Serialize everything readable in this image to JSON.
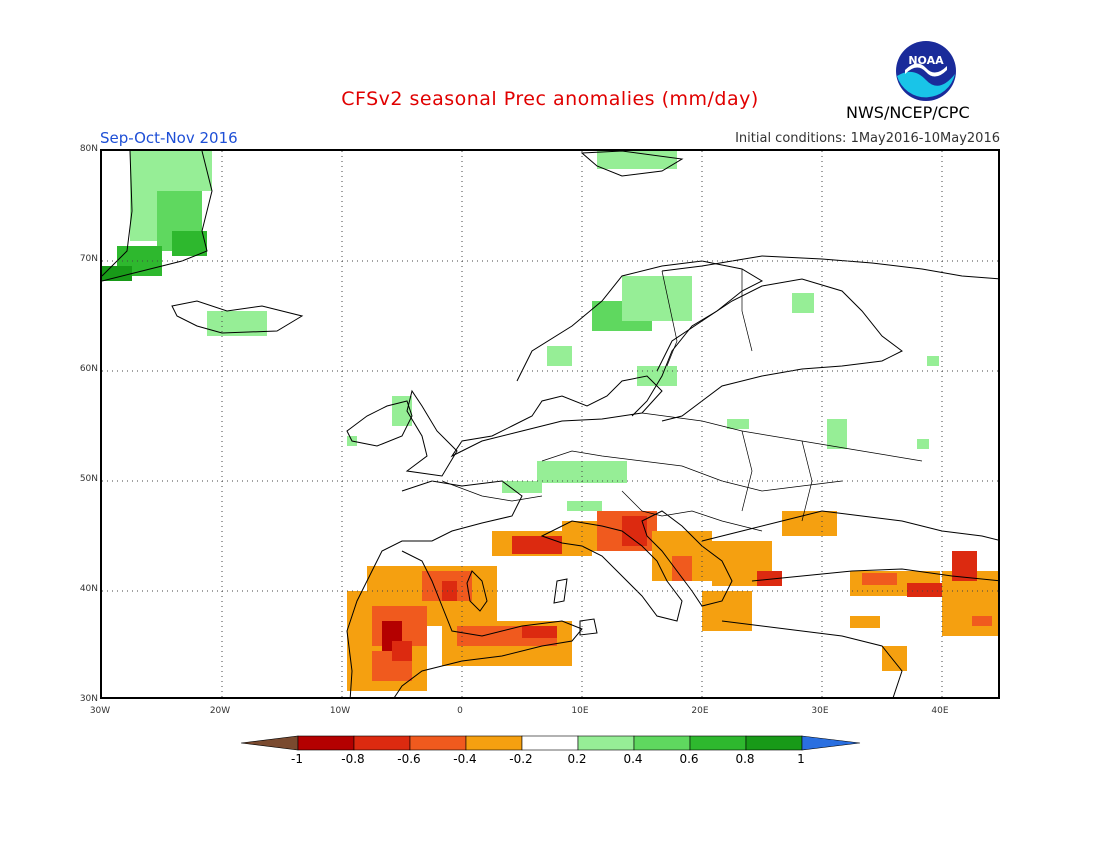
{
  "header": {
    "title": "CFSv2 seasonal Prec anomalies (mm/day)",
    "period": "Sep-Oct-Nov 2016",
    "initial_conditions": "Initial conditions: 1May2016-10May2016",
    "organization": "NWS/NCEP/CPC",
    "logo_text": "NOAA"
  },
  "axes": {
    "lat_ticks": [
      "80N",
      "70N",
      "60N",
      "50N",
      "40N",
      "30N"
    ],
    "lon_ticks": [
      "30W",
      "20W",
      "10W",
      "0",
      "10E",
      "20E",
      "30E",
      "40E"
    ]
  },
  "colorbar": {
    "colors": [
      "#7a4a2f",
      "#b40000",
      "#dc2a10",
      "#f05a1e",
      "#f5a010",
      "#ffffff",
      "#96ee96",
      "#5fd85f",
      "#2eb82e",
      "#189a18",
      "#2a6fe0"
    ],
    "ticks": [
      "-1",
      "-0.8",
      "-0.6",
      "-0.4",
      "-0.2",
      "0.2",
      "0.4",
      "0.6",
      "0.8",
      "1"
    ]
  }
}
